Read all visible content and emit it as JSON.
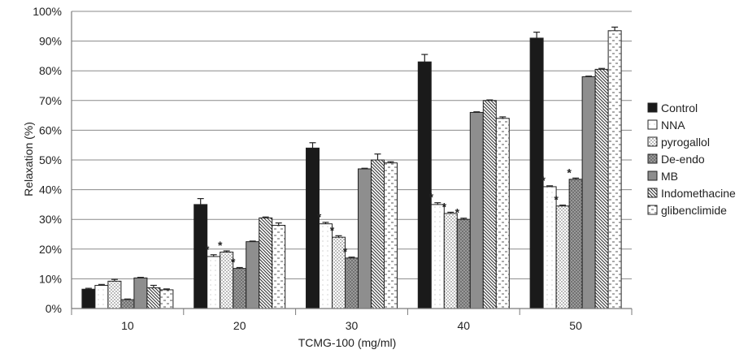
{
  "chart_data": {
    "type": "bar",
    "xlabel": "TCMG-100 (mg/ml)",
    "ylabel": "Relaxation (%)",
    "ylim": [
      0,
      100
    ],
    "y_tick_format": "percent",
    "y_ticks": [
      "0%",
      "10%",
      "20%",
      "30%",
      "40%",
      "50%",
      "60%",
      "70%",
      "80%",
      "90%",
      "100%"
    ],
    "categories": [
      "10",
      "20",
      "30",
      "40",
      "50"
    ],
    "legend_position": "right",
    "series": [
      {
        "name": "Control",
        "pattern": "solid-black",
        "values": [
          6.5,
          35,
          54,
          83,
          91
        ],
        "errors": [
          0.3,
          2,
          1.8,
          2.5,
          2
        ],
        "significant": [
          false,
          false,
          false,
          false,
          false
        ]
      },
      {
        "name": "NNA",
        "pattern": "white-lines",
        "values": [
          7.8,
          17.5,
          28.5,
          35,
          41
        ],
        "errors": [
          0.3,
          0.6,
          0.5,
          0.6,
          0.3
        ],
        "significant": [
          false,
          true,
          true,
          true,
          true
        ]
      },
      {
        "name": "pyrogallol",
        "pattern": "dots",
        "values": [
          9.2,
          19,
          24,
          32,
          34.5
        ],
        "errors": [
          0.6,
          0.4,
          0.5,
          0.4,
          0.3
        ],
        "significant": [
          false,
          true,
          true,
          true,
          true
        ]
      },
      {
        "name": "De-endo",
        "pattern": "dark-dots",
        "values": [
          3,
          13.5,
          17,
          30,
          43.5
        ],
        "errors": [
          0.2,
          0.3,
          0.3,
          0.4,
          0.4
        ],
        "significant": [
          false,
          true,
          true,
          true,
          true
        ]
      },
      {
        "name": "MB",
        "pattern": "gray",
        "values": [
          10.3,
          22.5,
          47,
          66,
          78
        ],
        "errors": [
          0.2,
          0.2,
          0.2,
          0.2,
          0.2
        ],
        "significant": [
          false,
          false,
          false,
          false,
          false
        ]
      },
      {
        "name": "Indomethacine",
        "pattern": "diagonal",
        "values": [
          7,
          30.5,
          50,
          70,
          80.5
        ],
        "errors": [
          0.8,
          0.3,
          2,
          0.2,
          0.3
        ],
        "significant": [
          false,
          false,
          false,
          false,
          false
        ]
      },
      {
        "name": "glibenclimide",
        "pattern": "dashes",
        "values": [
          6.3,
          28,
          49,
          64,
          93.5
        ],
        "errors": [
          0.3,
          0.8,
          0.4,
          0.5,
          1.2
        ],
        "significant": [
          false,
          false,
          false,
          false,
          false
        ]
      }
    ],
    "significance_marker": "*",
    "colors": {
      "axis": "#7a7a7a",
      "grid": "#8a8a8a",
      "bar_stroke": "#222222",
      "control": "#1a1a1a",
      "mb": "#8e8e8e"
    }
  }
}
